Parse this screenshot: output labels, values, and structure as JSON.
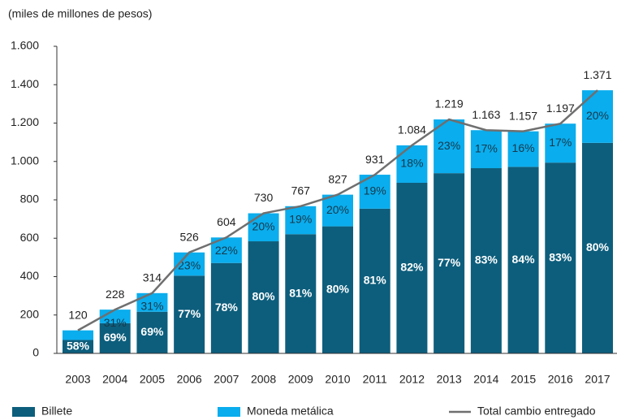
{
  "chart_data": {
    "type": "stacked-bar-line",
    "y_axis_label": "(miles de millones de pesos)",
    "categories": [
      "2003",
      "2004",
      "2005",
      "2006",
      "2007",
      "2008",
      "2009",
      "2010",
      "2011",
      "2012",
      "2013",
      "2014",
      "2015",
      "2016",
      "2017"
    ],
    "series": [
      {
        "name": "Billete",
        "color": "#0d5e7c",
        "label_color": "#ffffff",
        "values": [
          70,
          157,
          217,
          405,
          471,
          584,
          621,
          662,
          754,
          889,
          939,
          965,
          972,
          994,
          1097
        ],
        "share_labels": [
          "58%",
          "69%",
          "69%",
          "77%",
          "78%",
          "80%",
          "81%",
          "80%",
          "81%",
          "82%",
          "77%",
          "83%",
          "84%",
          "83%",
          "80%"
        ]
      },
      {
        "name": "Moneda metálica",
        "color": "#0aaded",
        "label_color": "#17384a",
        "values": [
          50,
          71,
          97,
          121,
          133,
          146,
          146,
          165,
          177,
          195,
          280,
          198,
          185,
          203,
          274
        ],
        "share_labels": [
          null,
          "31%",
          "31%",
          "23%",
          "22%",
          "20%",
          "19%",
          "20%",
          "19%",
          "18%",
          "23%",
          "17%",
          "16%",
          "17%",
          "20%"
        ]
      }
    ],
    "line": {
      "name": "Total cambio entregado",
      "color": "#6f6f6f",
      "values": [
        120,
        228,
        314,
        526,
        604,
        730,
        767,
        827,
        931,
        1084,
        1219,
        1163,
        1157,
        1197,
        1371
      ],
      "value_labels": [
        "120",
        "228",
        "314",
        "526",
        "604",
        "730",
        "767",
        "827",
        "931",
        "1.084",
        "1.219",
        "1.163",
        "1.157",
        "1.197",
        "1.371"
      ]
    },
    "ylim": [
      0,
      1600
    ],
    "yticks": [
      0,
      200,
      400,
      600,
      800,
      {
        "value": 1000,
        "label": "1.000"
      },
      {
        "value": 1200,
        "label": "1.200"
      },
      {
        "value": 1400,
        "label": "1.400"
      },
      {
        "value": 1600,
        "label": "1.600"
      }
    ]
  }
}
